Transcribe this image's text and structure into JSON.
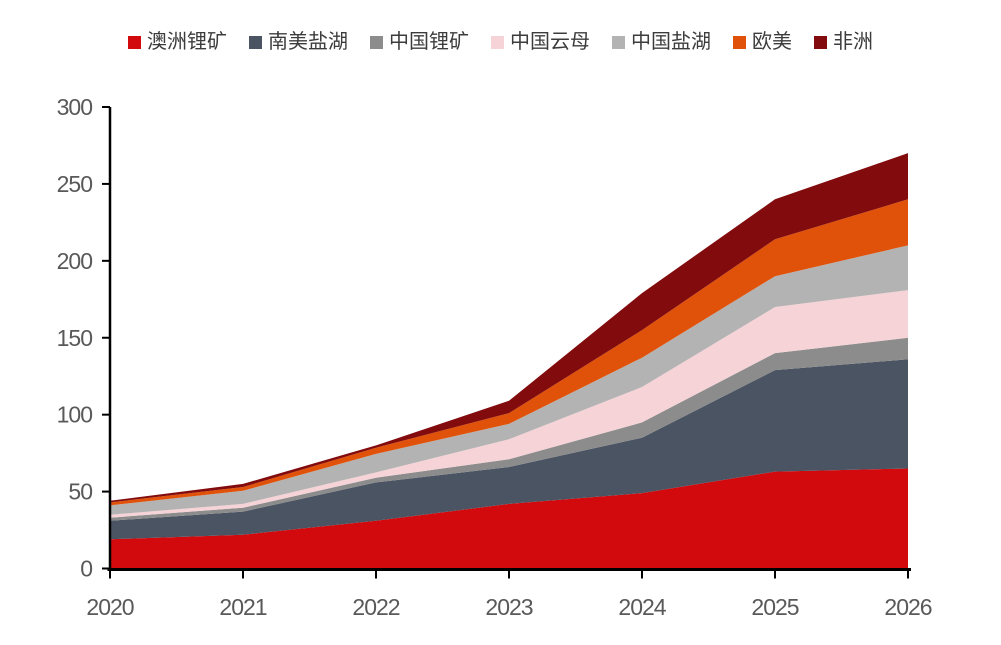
{
  "page": {
    "background": "#ffffff"
  },
  "chart_data": {
    "type": "area",
    "stacked": true,
    "title": "",
    "xlabel": "",
    "ylabel": "",
    "x": [
      "2020",
      "2021",
      "2022",
      "2023",
      "2024",
      "2025",
      "2026"
    ],
    "series": [
      {
        "name": "澳洲锂矿",
        "color": "#D20A0E",
        "values": [
          19,
          22,
          31,
          42,
          49,
          63,
          65
        ]
      },
      {
        "name": "南美盐湖",
        "color": "#4A5462",
        "values": [
          12,
          15,
          25,
          24,
          36,
          66,
          71
        ]
      },
      {
        "name": "中国锂矿",
        "color": "#8C8C8C",
        "values": [
          2,
          2.5,
          3,
          5,
          10,
          11,
          14
        ]
      },
      {
        "name": "中国云母",
        "color": "#F5D3D7",
        "values": [
          2,
          2.5,
          3.5,
          13,
          23,
          30,
          31
        ]
      },
      {
        "name": "中国盐湖",
        "color": "#B3B3B3",
        "values": [
          6,
          8.5,
          12,
          10,
          19,
          20,
          29
        ]
      },
      {
        "name": "欧美",
        "color": "#E0520A",
        "values": [
          2,
          2.5,
          4,
          7,
          18,
          24,
          30
        ]
      },
      {
        "name": "非洲",
        "color": "#810B0D",
        "values": [
          1,
          2,
          1.5,
          8,
          24,
          26,
          30
        ]
      }
    ],
    "totals_by_year": [
      44,
      55,
      80,
      109,
      179,
      240,
      270
    ],
    "ylim": [
      0,
      300
    ],
    "yticks": [
      0,
      50,
      100,
      150,
      200,
      250,
      300
    ],
    "grid": false,
    "legend_position": "top",
    "axis_color": "#000000",
    "tick_label_color": "#595959",
    "legend_text_color": "#3c3c3c"
  }
}
